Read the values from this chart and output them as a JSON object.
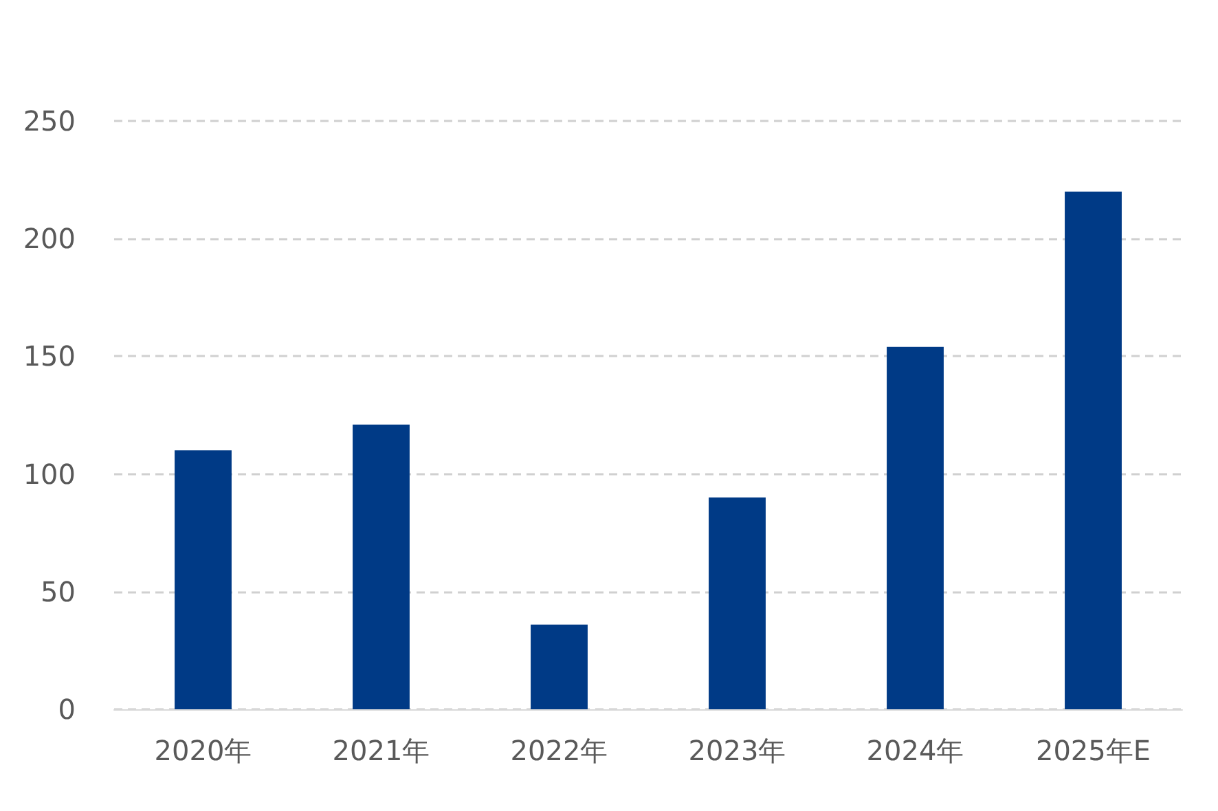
{
  "chart_data": {
    "type": "bar",
    "categories": [
      "2020年",
      "2021年",
      "2022年",
      "2023年",
      "2024年",
      "2025年E"
    ],
    "values": [
      110,
      121,
      36,
      90,
      154,
      220
    ],
    "color": "#003a86",
    "ylim": [
      0,
      250
    ],
    "yticks": [
      0,
      50,
      100,
      150,
      200,
      250
    ],
    "grid": "y"
  }
}
